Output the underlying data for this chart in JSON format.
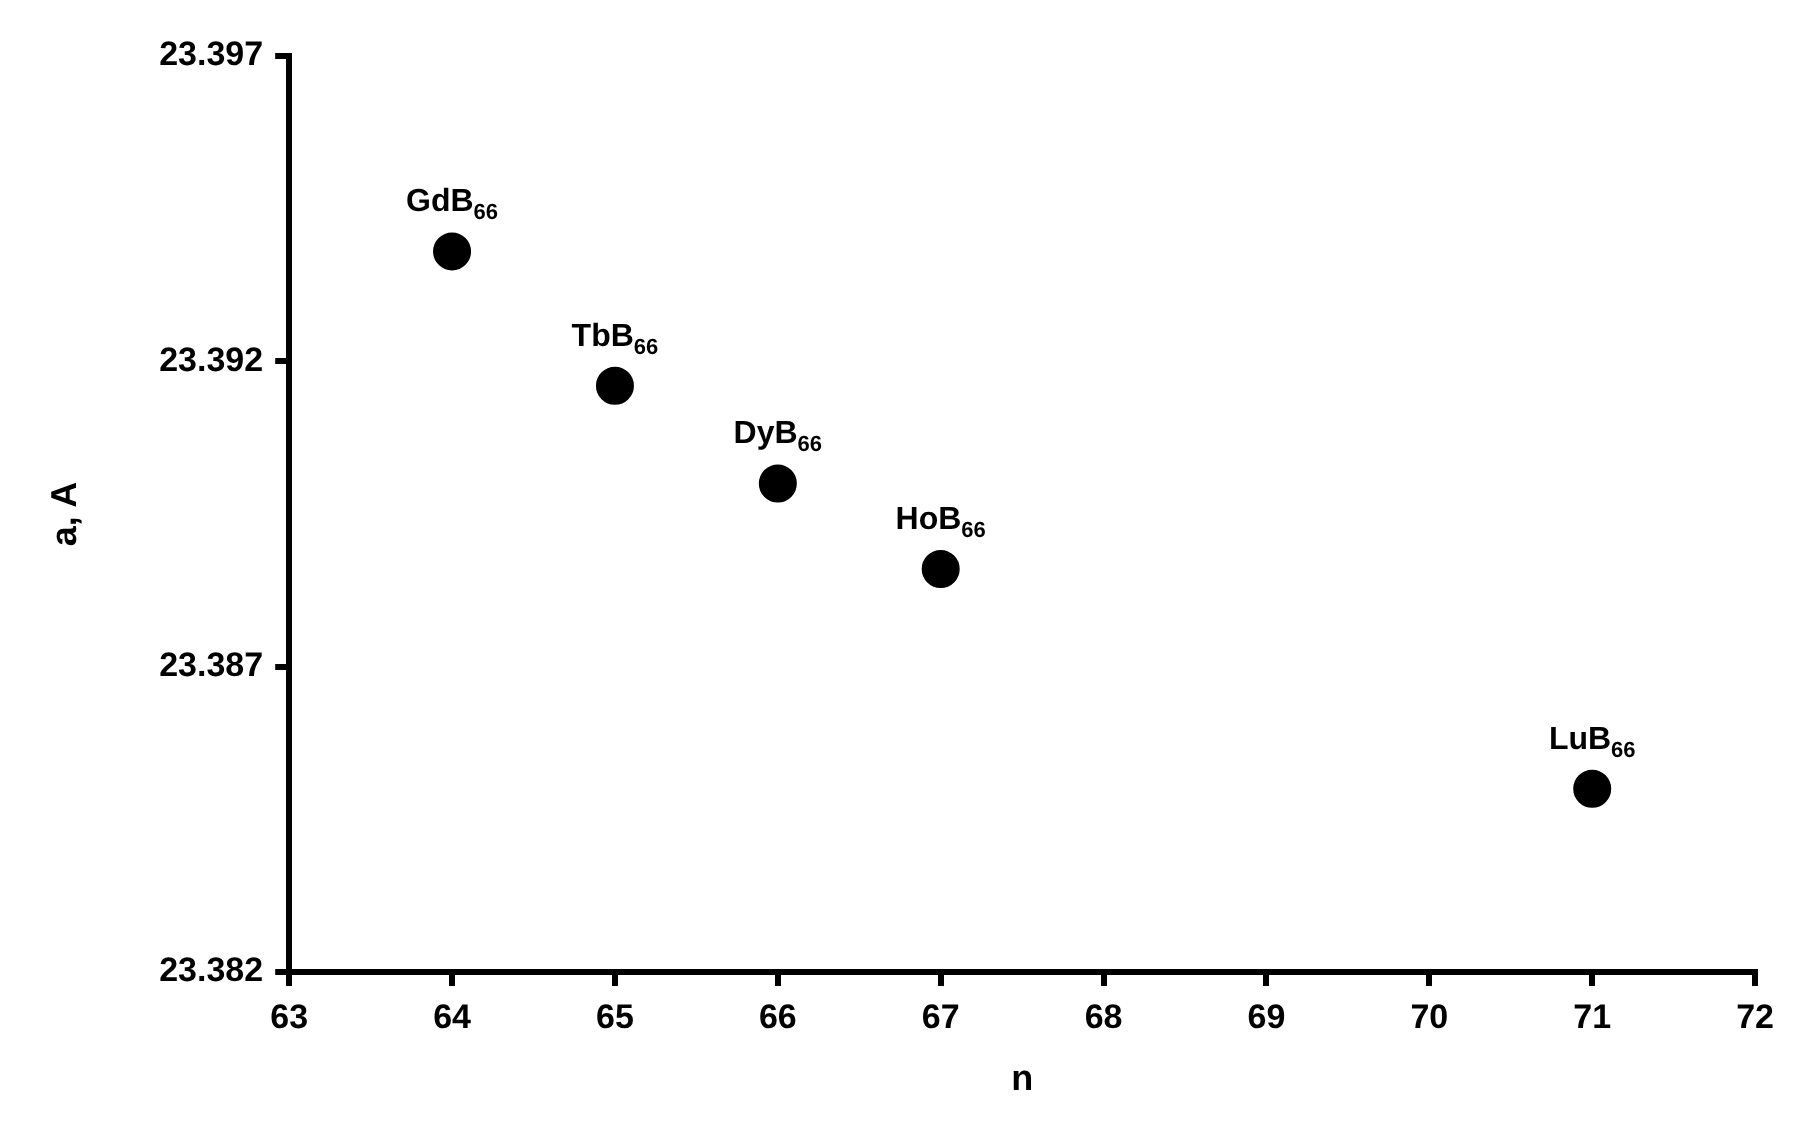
{
  "chart_data": {
    "type": "scatter",
    "xlabel": "n",
    "ylabel": "a, A",
    "x": [
      64,
      65,
      66,
      67,
      71
    ],
    "series": [
      {
        "color": "#000000",
        "values": [
          23.3938,
          23.3916,
          23.39,
          23.3886,
          23.385
        ]
      }
    ],
    "xlim": [
      63,
      72
    ],
    "xticks": [
      63,
      64,
      65,
      66,
      67,
      68,
      69,
      70,
      71,
      72
    ],
    "ylim": [
      23.382,
      23.397
    ],
    "yticks": [
      23.382,
      23.387,
      23.392,
      23.397
    ],
    "marker": "circle",
    "annotations": [
      {
        "text": "GdB$_{66}$",
        "x": 64,
        "y": 23.3938
      },
      {
        "text": "TbB$_{66}$",
        "x": 65,
        "y": 23.3916
      },
      {
        "text": "DyB$_{66}$",
        "x": 66,
        "y": 23.39
      },
      {
        "text": "HoB$_{66}$",
        "x": 67,
        "y": 23.3886
      },
      {
        "text": "LuB$_{66}$",
        "x": 71,
        "y": 23.385
      }
    ]
  }
}
